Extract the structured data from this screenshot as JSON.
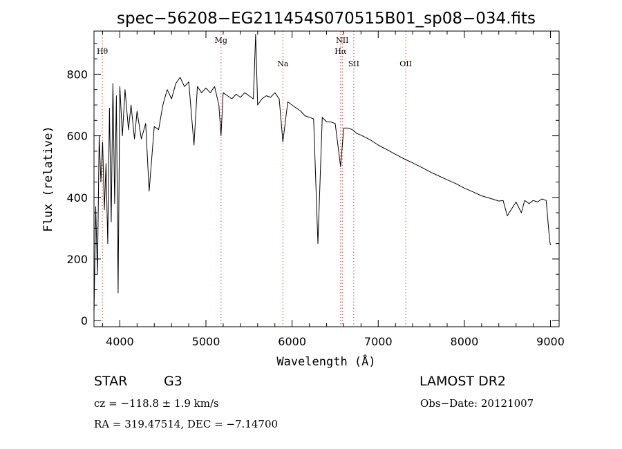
{
  "chart_data": {
    "type": "line",
    "title": "spec−56208−EG211454S070515B01_sp08−034.fits",
    "xlabel": "Wavelength (Å)",
    "ylabel": "Flux (relative)",
    "xlim": [
      3700,
      9100
    ],
    "ylim": [
      -20,
      940
    ],
    "x_ticks": [
      4000,
      5000,
      6000,
      7000,
      8000,
      9000
    ],
    "y_ticks": [
      0,
      200,
      400,
      600,
      800
    ],
    "grid": false,
    "series": [
      {
        "x": [
          3700,
          3720,
          3740,
          3760,
          3780,
          3800,
          3820,
          3840,
          3860,
          3880,
          3900,
          3920,
          3940,
          3960,
          3980,
          4000,
          4030,
          4060,
          4100,
          4130,
          4170,
          4200,
          4250,
          4300,
          4340,
          4400,
          4450,
          4500,
          4550,
          4600,
          4650,
          4700,
          4750,
          4800,
          4861,
          4900,
          4950,
          5000,
          5050,
          5100,
          5150,
          5175,
          5200,
          5250,
          5300,
          5350,
          5400,
          5450,
          5500,
          5550,
          5577,
          5600,
          5650,
          5700,
          5750,
          5800,
          5850,
          5893,
          5950,
          6000,
          6050,
          6100,
          6150,
          6200,
          6250,
          6300,
          6350,
          6400,
          6450,
          6500,
          6563,
          6600,
          6650,
          6700,
          6750,
          6800,
          6900,
          7000,
          7100,
          7200,
          7300,
          7400,
          7500,
          7600,
          7700,
          7800,
          7900,
          8000,
          8100,
          8200,
          8300,
          8400,
          8450,
          8498,
          8542,
          8600,
          8662,
          8700,
          8750,
          8800,
          8850,
          8900,
          8950,
          8990,
          9000
        ],
        "y": [
          20,
          370,
          150,
          600,
          450,
          580,
          360,
          510,
          250,
          690,
          320,
          770,
          380,
          730,
          90,
          760,
          600,
          750,
          620,
          700,
          590,
          680,
          590,
          640,
          420,
          630,
          620,
          700,
          750,
          720,
          770,
          790,
          760,
          775,
          570,
          760,
          740,
          755,
          740,
          760,
          700,
          600,
          740,
          730,
          720,
          735,
          725,
          740,
          730,
          720,
          930,
          700,
          720,
          730,
          725,
          740,
          720,
          580,
          710,
          700,
          690,
          680,
          665,
          660,
          655,
          250,
          660,
          645,
          645,
          640,
          500,
          625,
          625,
          620,
          608,
          602,
          588,
          570,
          555,
          540,
          525,
          512,
          498,
          483,
          470,
          457,
          445,
          430,
          418,
          405,
          397,
          388,
          390,
          340,
          360,
          385,
          350,
          390,
          380,
          390,
          385,
          395,
          390,
          260,
          245
        ]
      }
    ],
    "annotations": [
      {
        "text": "Hθ",
        "x": 3797,
        "row": 1
      },
      {
        "text": "Mg",
        "x": 5175,
        "row": 0
      },
      {
        "text": "Na",
        "x": 5893,
        "row": 2
      },
      {
        "text": "NII",
        "x": 6583,
        "row": 0
      },
      {
        "text": "Hα",
        "x": 6563,
        "row": 1
      },
      {
        "text": "SII",
        "x": 6716,
        "row": 2
      },
      {
        "text": "OII",
        "x": 7320,
        "row": 2
      }
    ]
  },
  "info": {
    "object_type": "STAR",
    "subclass": "G3",
    "survey": "LAMOST DR2",
    "obs_date": "Obs−Date: 20121007",
    "cz": "cz = −118.8 ± 1.9 km/s",
    "radec": "RA = 319.47514, DEC =  −7.14700"
  }
}
